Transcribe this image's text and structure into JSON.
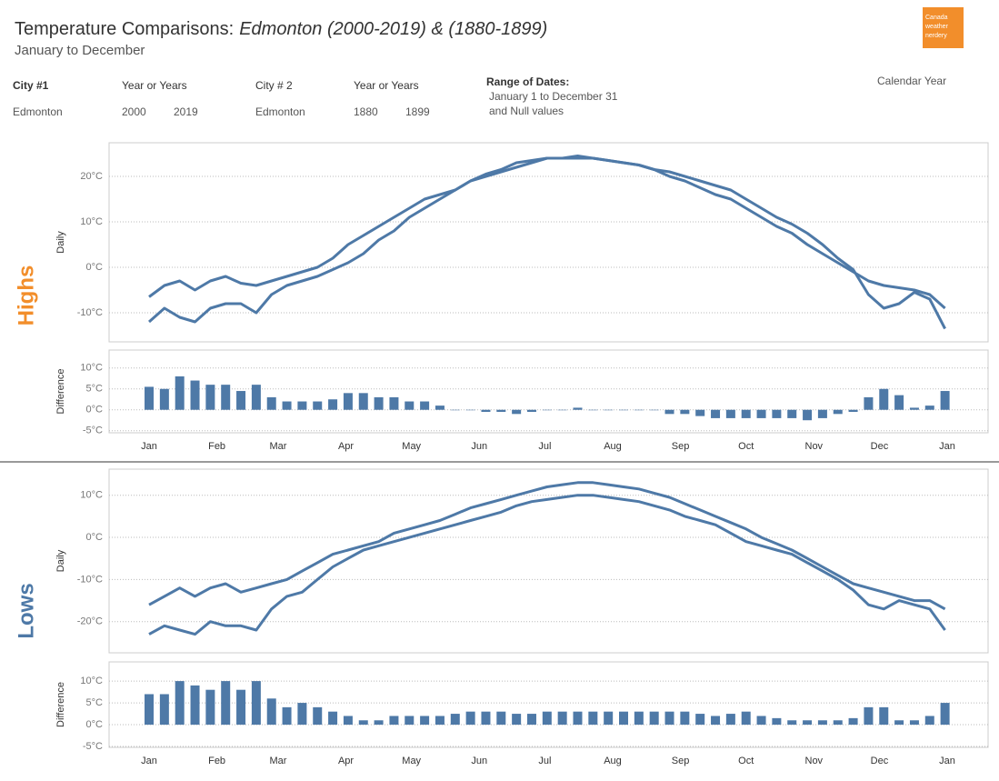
{
  "header": {
    "title": "Temperature Comparisons:",
    "title_italic": "Edmonton (2000-2019) & (1880-1899)",
    "subtitle": "January to December",
    "logo": [
      "Canada",
      "weather",
      "nerdery"
    ]
  },
  "filters": {
    "city1_label": "City #1",
    "city1": "Edmonton",
    "years1_label": "Year or Years",
    "years1": [
      "2000",
      "2019"
    ],
    "city2_label": "City # 2",
    "city2": "Edmonton",
    "years2_label": "Year or Years",
    "years2": [
      "1880",
      "1899"
    ],
    "range_label": "Range of Dates:",
    "range": [
      "January 1 to December 31",
      "and Null values"
    ],
    "calendar": "Calendar Year"
  },
  "sections": [
    "Highs",
    "Lows"
  ],
  "chart_data": [
    {
      "type": "line",
      "y_label": "Daily",
      "xlim": [
        -17.3,
        384.7
      ],
      "ylim": [
        -16.4,
        27.4
      ],
      "yticks": [
        {
          "value": -10,
          "label": "-10°C"
        },
        {
          "value": 0,
          "label": "0°C"
        },
        {
          "value": 10,
          "label": "10°C"
        },
        {
          "value": 20,
          "label": "20°C"
        }
      ],
      "grid": true,
      "x": [
        1,
        8,
        15,
        22,
        29,
        36,
        43,
        50,
        57,
        64,
        71,
        78,
        85,
        92,
        99,
        106,
        113,
        120,
        127,
        134,
        141,
        148,
        155,
        162,
        169,
        176,
        183,
        190,
        197,
        204,
        211,
        218,
        225,
        232,
        239,
        246,
        253,
        260,
        267,
        274,
        281,
        288,
        295,
        302,
        309,
        316,
        323,
        330,
        337,
        344,
        351,
        358,
        365
      ],
      "series": [
        {
          "color": "#4e79a7",
          "values": [
            -6.5,
            -4,
            -3,
            -5,
            -3,
            -2,
            -3.5,
            -4,
            -3,
            -2,
            -1,
            0,
            2,
            5,
            7,
            9,
            11,
            13,
            15,
            16,
            17,
            19,
            20,
            21,
            22,
            23,
            24,
            24,
            24.5,
            24,
            23.5,
            23,
            22.5,
            21.5,
            20,
            19,
            17.5,
            16,
            15,
            13,
            11,
            9,
            7.5,
            5,
            3,
            1,
            -1,
            -3,
            -4,
            -4.5,
            -5,
            -6,
            -9
          ]
        },
        {
          "color": "#4e79a7",
          "values": [
            -12,
            -9,
            -11,
            -12,
            -9,
            -8,
            -8,
            -10,
            -6,
            -4,
            -3,
            -2,
            -0.5,
            1,
            3,
            6,
            8,
            11,
            13,
            15,
            17,
            19,
            20.5,
            21.5,
            23,
            23.5,
            24,
            24,
            24,
            24,
            23.5,
            23,
            22.5,
            21.5,
            21,
            20,
            19,
            18,
            17,
            15,
            13,
            11,
            9.5,
            7.5,
            5,
            2,
            -0.5,
            -6,
            -9,
            -8,
            -5.5,
            -7,
            -13.5
          ]
        }
      ]
    },
    {
      "type": "bar",
      "y_label": "Difference",
      "xlim": [
        -17.3,
        384.7
      ],
      "ylim": [
        -5.5,
        14.3
      ],
      "color": "#4e79a7",
      "yticks": [
        {
          "value": -5,
          "label": "-5°C"
        },
        {
          "value": 0,
          "label": "0°C"
        },
        {
          "value": 5,
          "label": "5°C"
        },
        {
          "value": 10,
          "label": "10°C"
        }
      ],
      "grid": true,
      "xticks": [
        {
          "value": 1,
          "label": "Jan"
        },
        {
          "value": 32,
          "label": "Feb"
        },
        {
          "value": 60,
          "label": "Mar"
        },
        {
          "value": 91,
          "label": "Apr"
        },
        {
          "value": 121,
          "label": "May"
        },
        {
          "value": 152,
          "label": "Jun"
        },
        {
          "value": 182,
          "label": "Jul"
        },
        {
          "value": 213,
          "label": "Aug"
        },
        {
          "value": 244,
          "label": "Sep"
        },
        {
          "value": 274,
          "label": "Oct"
        },
        {
          "value": 305,
          "label": "Nov"
        },
        {
          "value": 335,
          "label": "Dec"
        },
        {
          "value": 366,
          "label": "Jan"
        }
      ],
      "x": [
        1,
        8,
        15,
        22,
        29,
        36,
        43,
        50,
        57,
        64,
        71,
        78,
        85,
        92,
        99,
        106,
        113,
        120,
        127,
        134,
        141,
        148,
        155,
        162,
        169,
        176,
        183,
        190,
        197,
        204,
        211,
        218,
        225,
        232,
        239,
        246,
        253,
        260,
        267,
        274,
        281,
        288,
        295,
        302,
        309,
        316,
        323,
        330,
        337,
        344,
        351,
        358,
        365
      ],
      "values": [
        5.5,
        5,
        8,
        7,
        6,
        6,
        4.5,
        6,
        3,
        2,
        2,
        2,
        2.5,
        4,
        4,
        3,
        3,
        2,
        2,
        1,
        0,
        0,
        -0.5,
        -0.5,
        -1,
        -0.5,
        0,
        0,
        0.5,
        0,
        0,
        0,
        0,
        0,
        -1,
        -1,
        -1.5,
        -2,
        -2,
        -2,
        -2,
        -2,
        -2,
        -2.5,
        -2,
        -1,
        -0.5,
        3,
        5,
        3.5,
        0.5,
        1,
        4.5
      ]
    },
    {
      "type": "line",
      "y_label": "Daily",
      "xlim": [
        -17.3,
        384.7
      ],
      "ylim": [
        -27.4,
        16.2
      ],
      "yticks": [
        {
          "value": -20,
          "label": "-20°C"
        },
        {
          "value": -10,
          "label": "-10°C"
        },
        {
          "value": 0,
          "label": "0°C"
        },
        {
          "value": 10,
          "label": "10°C"
        }
      ],
      "grid": true,
      "x": [
        1,
        8,
        15,
        22,
        29,
        36,
        43,
        50,
        57,
        64,
        71,
        78,
        85,
        92,
        99,
        106,
        113,
        120,
        127,
        134,
        141,
        148,
        155,
        162,
        169,
        176,
        183,
        190,
        197,
        204,
        211,
        218,
        225,
        232,
        239,
        246,
        253,
        260,
        267,
        274,
        281,
        288,
        295,
        302,
        309,
        316,
        323,
        330,
        337,
        344,
        351,
        358,
        365
      ],
      "series": [
        {
          "color": "#4e79a7",
          "values": [
            -16,
            -14,
            -12,
            -14,
            -12,
            -11,
            -13,
            -12,
            -11,
            -10,
            -8,
            -6,
            -4,
            -3,
            -2,
            -1,
            1,
            2,
            3,
            4,
            5.5,
            7,
            8,
            9,
            10,
            11,
            12,
            12.5,
            13,
            13,
            12.5,
            12,
            11.5,
            10.5,
            9.5,
            8,
            6.5,
            5,
            3.5,
            2,
            0,
            -1.5,
            -3,
            -5,
            -7,
            -9,
            -11,
            -12,
            -13,
            -14,
            -15,
            -15,
            -17
          ]
        },
        {
          "color": "#4e79a7",
          "values": [
            -23,
            -21,
            -22,
            -23,
            -20,
            -21,
            -21,
            -22,
            -17,
            -14,
            -13,
            -10,
            -7,
            -5,
            -3,
            -2,
            -1,
            0,
            1,
            2,
            3,
            4,
            5,
            6,
            7.5,
            8.5,
            9,
            9.5,
            10,
            10,
            9.5,
            9,
            8.5,
            7.5,
            6.5,
            5,
            4,
            3,
            1,
            -1,
            -2,
            -3,
            -4,
            -6,
            -8,
            -10,
            -12.5,
            -16,
            -17,
            -15,
            -16,
            -17,
            -22
          ]
        }
      ]
    },
    {
      "type": "bar",
      "y_label": "Difference",
      "xlim": [
        -17.3,
        384.7
      ],
      "ylim": [
        -5.2,
        14.4
      ],
      "color": "#4e79a7",
      "yticks": [
        {
          "value": -5,
          "label": "-5°C"
        },
        {
          "value": 0,
          "label": "0°C"
        },
        {
          "value": 5,
          "label": "5°C"
        },
        {
          "value": 10,
          "label": "10°C"
        }
      ],
      "grid": true,
      "xticks": [
        {
          "value": 1,
          "label": "Jan"
        },
        {
          "value": 32,
          "label": "Feb"
        },
        {
          "value": 60,
          "label": "Mar"
        },
        {
          "value": 91,
          "label": "Apr"
        },
        {
          "value": 121,
          "label": "May"
        },
        {
          "value": 152,
          "label": "Jun"
        },
        {
          "value": 182,
          "label": "Jul"
        },
        {
          "value": 213,
          "label": "Aug"
        },
        {
          "value": 244,
          "label": "Sep"
        },
        {
          "value": 274,
          "label": "Oct"
        },
        {
          "value": 305,
          "label": "Nov"
        },
        {
          "value": 335,
          "label": "Dec"
        },
        {
          "value": 366,
          "label": "Jan"
        }
      ],
      "x": [
        1,
        8,
        15,
        22,
        29,
        36,
        43,
        50,
        57,
        64,
        71,
        78,
        85,
        92,
        99,
        106,
        113,
        120,
        127,
        134,
        141,
        148,
        155,
        162,
        169,
        176,
        183,
        190,
        197,
        204,
        211,
        218,
        225,
        232,
        239,
        246,
        253,
        260,
        267,
        274,
        281,
        288,
        295,
        302,
        309,
        316,
        323,
        330,
        337,
        344,
        351,
        358,
        365
      ],
      "values": [
        7,
        7,
        10,
        9,
        8,
        10,
        8,
        10,
        6,
        4,
        5,
        4,
        3,
        2,
        1,
        1,
        2,
        2,
        2,
        2,
        2.5,
        3,
        3,
        3,
        2.5,
        2.5,
        3,
        3,
        3,
        3,
        3,
        3,
        3,
        3,
        3,
        3,
        2.5,
        2,
        2.5,
        3,
        2,
        1.5,
        1,
        1,
        1,
        1,
        1.5,
        4,
        4,
        1,
        1,
        2,
        5
      ]
    }
  ]
}
